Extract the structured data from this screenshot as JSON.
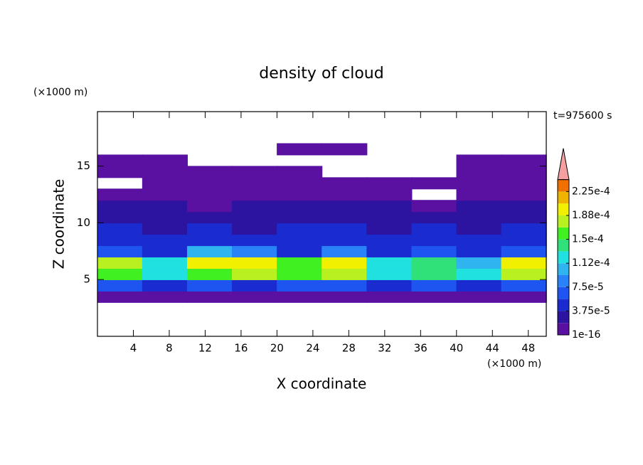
{
  "chart_data": {
    "type": "contour",
    "title": "density of cloud",
    "x_label": "X coordinate",
    "y_label": "Z coordinate",
    "x_unit": "(×1000 m)",
    "y_unit": "(×1000 m)",
    "annotation": "t=975600 s",
    "xlim": [
      0,
      50
    ],
    "ylim": [
      0,
      19.8
    ],
    "xticks": [
      4,
      8,
      12,
      16,
      20,
      24,
      28,
      32,
      36,
      40,
      44,
      48
    ],
    "yticks": [
      5,
      10,
      15
    ],
    "x": [
      2.5,
      7.5,
      12.5,
      17.5,
      22.5,
      27.5,
      32.5,
      37.5,
      42.5,
      47.5
    ],
    "z": [
      3.5,
      4.5,
      5.5,
      6.5,
      7.5,
      8.5,
      9.5,
      10.5,
      11.5,
      12.5,
      13.5,
      14.5,
      15.5,
      16.5
    ],
    "values": [
      [
        1e-05,
        1e-05,
        1e-05,
        1e-05,
        1e-05,
        1e-05,
        1e-05,
        1e-05,
        1e-05,
        1e-05
      ],
      [
        6e-05,
        5e-05,
        6e-05,
        5e-05,
        6e-05,
        6e-05,
        5e-05,
        6e-05,
        5e-05,
        6e-05
      ],
      [
        0.00015,
        0.00012,
        0.00016,
        0.00017,
        0.00016,
        0.00017,
        0.00013,
        0.00014,
        0.00012,
        0.00017
      ],
      [
        0.00017,
        0.00013,
        0.00019,
        0.0002,
        0.00015,
        0.0002,
        0.00012,
        0.00014,
        0.00011,
        0.00019
      ],
      [
        6e-05,
        5e-05,
        0.0001,
        9e-05,
        5e-05,
        9e-05,
        5e-05,
        6e-05,
        5e-05,
        6e-05
      ],
      [
        5e-05,
        4e-05,
        5e-05,
        5e-05,
        4e-05,
        5e-05,
        4e-05,
        5e-05,
        4e-05,
        5e-05
      ],
      [
        4e-05,
        3e-05,
        4e-05,
        3e-05,
        4e-05,
        4e-05,
        3e-05,
        4e-05,
        3e-05,
        4e-05
      ],
      [
        3e-05,
        2e-05,
        2e-05,
        3e-05,
        3e-05,
        2e-05,
        3e-05,
        3e-05,
        2e-05,
        3e-05
      ],
      [
        2e-05,
        2e-05,
        1e-05,
        2e-05,
        2e-05,
        2e-05,
        2e-05,
        1e-05,
        2e-05,
        2e-05
      ],
      [
        1e-05,
        1e-05,
        1e-05,
        1e-05,
        1e-05,
        1e-05,
        1e-05,
        null,
        1e-05,
        1e-05
      ],
      [
        null,
        1e-05,
        1e-05,
        1e-05,
        1e-05,
        1e-05,
        1e-05,
        1e-05,
        1e-05,
        1e-05
      ],
      [
        1e-05,
        1e-05,
        1e-05,
        1e-05,
        1e-05,
        null,
        null,
        null,
        1e-05,
        1e-05
      ],
      [
        1e-05,
        1e-05,
        null,
        null,
        null,
        null,
        null,
        null,
        1e-05,
        1e-05
      ],
      [
        null,
        null,
        null,
        null,
        1e-05,
        1e-05,
        null,
        null,
        null,
        null
      ]
    ],
    "levels": [
      1e-16,
      1.875e-05,
      3.75e-05,
      5.625e-05,
      7.5e-05,
      9.375e-05,
      0.0001125,
      0.00013125,
      0.00015,
      0.00016875,
      0.0001875,
      0.00020625,
      0.000225,
      0.00024375
    ],
    "colors": [
      "#5a10a0",
      "#2c14a0",
      "#1a2cd0",
      "#1e55f0",
      "#2a82f8",
      "#30b4f0",
      "#20e0e0",
      "#30e078",
      "#40f020",
      "#b8f020",
      "#f0f000",
      "#f0b400",
      "#f07000"
    ],
    "over_color": "#f4a0a0",
    "colorbar_ticks": [
      {
        "value": 1e-16,
        "label": "1e-16"
      },
      {
        "value": 3.75e-05,
        "label": "3.75e-5"
      },
      {
        "value": 7.5e-05,
        "label": "7.5e-5"
      },
      {
        "value": 0.0001125,
        "label": "1.12e-4"
      },
      {
        "value": 0.00015,
        "label": "1.5e-4"
      },
      {
        "value": 0.0001875,
        "label": "1.88e-4"
      },
      {
        "value": 0.000225,
        "label": "2.25e-4"
      }
    ]
  }
}
